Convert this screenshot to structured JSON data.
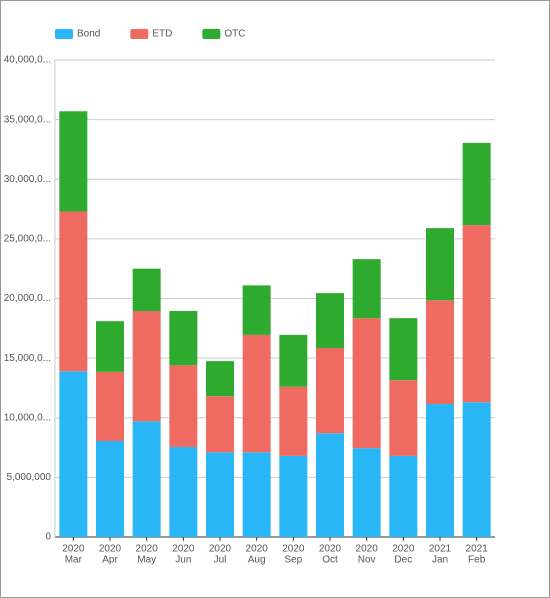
{
  "chart_data": {
    "type": "stacked_bar",
    "categories": [
      [
        "2020",
        "Mar"
      ],
      [
        "2020",
        "Apr"
      ],
      [
        "2020",
        "May"
      ],
      [
        "2020",
        "Jun"
      ],
      [
        "2020",
        "Jul"
      ],
      [
        "2020",
        "Aug"
      ],
      [
        "2020",
        "Sep"
      ],
      [
        "2020",
        "Oct"
      ],
      [
        "2020",
        "Nov"
      ],
      [
        "2020",
        "Dec"
      ],
      [
        "2021",
        "Jan"
      ],
      [
        "2021",
        "Feb"
      ]
    ],
    "series": [
      {
        "name": "Bond",
        "color": "#29b6f6",
        "values": [
          13900000,
          8050000,
          9700000,
          7550000,
          7100000,
          7100000,
          6800000,
          8700000,
          7450000,
          6800000,
          11150000,
          11300000
        ]
      },
      {
        "name": "ETD",
        "color": "#ef6b61",
        "values": [
          13400000,
          5800000,
          9250000,
          6850000,
          4700000,
          9850000,
          5800000,
          7150000,
          10900000,
          6350000,
          8700000,
          14850000
        ]
      },
      {
        "name": "OTC",
        "color": "#2eab2e",
        "values": [
          8400000,
          4250000,
          3550000,
          4550000,
          2950000,
          4150000,
          4350000,
          4600000,
          4950000,
          5200000,
          6050000,
          6900000
        ]
      }
    ],
    "ylim": [
      0,
      40000000
    ],
    "yticks": [
      0,
      {
        "value": 5000000,
        "label": "5,000,000"
      },
      {
        "value": 10000000,
        "label": "10,000,0..."
      },
      {
        "value": 15000000,
        "label": "15,000,0..."
      },
      {
        "value": 20000000,
        "label": "20,000,0..."
      },
      {
        "value": 25000000,
        "label": "25,000,0..."
      },
      {
        "value": 30000000,
        "label": "30,000,0..."
      },
      {
        "value": 35000000,
        "label": "35,000,0..."
      },
      {
        "value": 40000000,
        "label": "40,000,0..."
      }
    ],
    "grid": true,
    "legend": "top-left"
  }
}
